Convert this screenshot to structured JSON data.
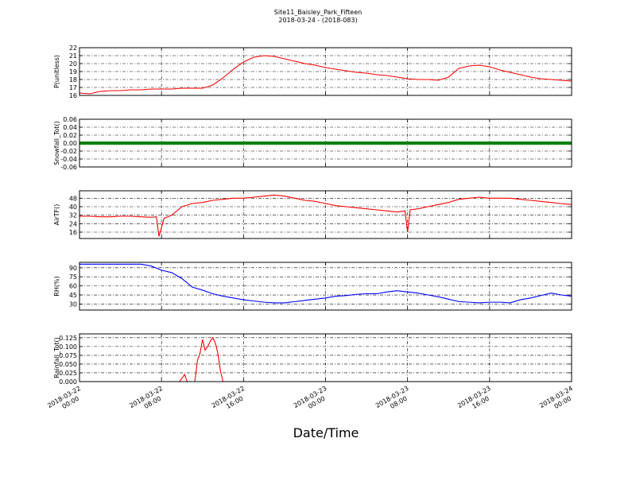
{
  "chart_data": [
    {
      "type": "line",
      "title": "Site11_Baisley_Park_Fifteen",
      "subtitle": "2018-03-24 - (2018-083)",
      "ylabel": "P(unitless)",
      "color": "#ff0000",
      "ylim": [
        16,
        22
      ],
      "yticks": [
        16,
        17,
        18,
        19,
        20,
        21,
        22
      ],
      "grid": true,
      "x": [
        "2018-03-22 00:00",
        "2018-03-22 01:00",
        "2018-03-22 02:00",
        "2018-03-22 03:00",
        "2018-03-22 04:00",
        "2018-03-22 05:00",
        "2018-03-22 06:00",
        "2018-03-22 07:00",
        "2018-03-22 08:00",
        "2018-03-22 09:00",
        "2018-03-22 10:00",
        "2018-03-22 11:00",
        "2018-03-22 12:00",
        "2018-03-22 13:00",
        "2018-03-22 14:00",
        "2018-03-22 15:00",
        "2018-03-22 16:00",
        "2018-03-22 17:00",
        "2018-03-22 18:00",
        "2018-03-22 19:00",
        "2018-03-22 20:00",
        "2018-03-22 21:00",
        "2018-03-22 22:00",
        "2018-03-22 23:00",
        "2018-03-23 00:00",
        "2018-03-23 01:00",
        "2018-03-23 02:00",
        "2018-03-23 03:00",
        "2018-03-23 04:00",
        "2018-03-23 05:00",
        "2018-03-23 06:00",
        "2018-03-23 07:00",
        "2018-03-23 08:00",
        "2018-03-23 09:00",
        "2018-03-23 10:00",
        "2018-03-23 11:00",
        "2018-03-23 12:00",
        "2018-03-23 13:00",
        "2018-03-23 14:00",
        "2018-03-23 15:00",
        "2018-03-23 16:00",
        "2018-03-23 17:00",
        "2018-03-23 18:00",
        "2018-03-23 19:00",
        "2018-03-23 20:00",
        "2018-03-23 21:00",
        "2018-03-23 22:00",
        "2018-03-23 23:00",
        "2018-03-24 00:00"
      ],
      "values": [
        16.3,
        16.2,
        16.5,
        16.6,
        16.6,
        16.7,
        16.7,
        16.8,
        16.8,
        16.8,
        16.9,
        16.9,
        16.9,
        17.3,
        18.2,
        19.3,
        20.2,
        20.8,
        21.0,
        20.9,
        20.6,
        20.3,
        20.0,
        19.8,
        19.5,
        19.3,
        19.1,
        18.9,
        18.8,
        18.6,
        18.5,
        18.3,
        18.1,
        18.0,
        18.0,
        17.9,
        18.3,
        19.4,
        19.7,
        19.8,
        19.6,
        19.2,
        18.9,
        18.6,
        18.3,
        18.1,
        18.0,
        17.9,
        17.8
      ]
    },
    {
      "type": "line",
      "ylabel": "Snowfall_Tot()",
      "color": "#008000",
      "ylim": [
        -0.06,
        0.06
      ],
      "yticks": [
        -0.06,
        -0.04,
        -0.02,
        {
          "value": 0,
          "label": "0.00"
        },
        0.02,
        0.04,
        0.06
      ],
      "grid": true,
      "x": [
        "2018-03-22 00:00",
        "2018-03-22 01:00",
        "2018-03-22 02:00",
        "2018-03-22 03:00",
        "2018-03-22 04:00",
        "2018-03-22 05:00",
        "2018-03-22 06:00",
        "2018-03-22 07:00",
        "2018-03-22 08:00",
        "2018-03-22 09:00",
        "2018-03-22 10:00",
        "2018-03-22 11:00",
        "2018-03-22 12:00",
        "2018-03-22 13:00",
        "2018-03-22 14:00",
        "2018-03-22 15:00",
        "2018-03-22 16:00",
        "2018-03-22 17:00",
        "2018-03-22 18:00",
        "2018-03-22 19:00",
        "2018-03-22 20:00",
        "2018-03-22 21:00",
        "2018-03-22 22:00",
        "2018-03-22 23:00",
        "2018-03-23 00:00",
        "2018-03-23 01:00",
        "2018-03-23 02:00",
        "2018-03-23 03:00",
        "2018-03-23 04:00",
        "2018-03-23 05:00",
        "2018-03-23 06:00",
        "2018-03-23 07:00",
        "2018-03-23 08:00",
        "2018-03-23 09:00",
        "2018-03-23 10:00",
        "2018-03-23 11:00",
        "2018-03-23 12:00",
        "2018-03-23 13:00",
        "2018-03-23 14:00",
        "2018-03-23 15:00",
        "2018-03-23 16:00",
        "2018-03-23 17:00",
        "2018-03-23 18:00",
        "2018-03-23 19:00",
        "2018-03-23 20:00",
        "2018-03-23 21:00",
        "2018-03-23 22:00",
        "2018-03-23 23:00",
        "2018-03-24 00:00"
      ],
      "values": [
        0,
        0,
        0,
        0,
        0,
        0,
        0,
        0,
        0,
        0,
        0,
        0,
        0,
        0,
        0,
        0,
        0,
        0,
        0,
        0,
        0,
        0,
        0,
        0,
        0,
        0,
        0,
        0,
        0,
        0,
        0,
        0,
        0,
        0,
        0,
        0,
        0,
        0,
        0,
        0,
        0,
        0,
        0,
        0,
        0,
        0,
        0,
        0,
        0
      ]
    },
    {
      "type": "line",
      "ylabel": "AirTF()",
      "color": "#ff0000",
      "ylim": [
        10,
        55
      ],
      "yticks": [
        16,
        24,
        32,
        40,
        48
      ],
      "grid": true,
      "x": [
        "2018-03-22 00:00",
        "2018-03-22 01:00",
        "2018-03-22 02:00",
        "2018-03-22 03:00",
        "2018-03-22 04:00",
        "2018-03-22 05:00",
        "2018-03-22 06:00",
        "2018-03-22 07:00",
        "2018-03-22 07:30",
        "2018-03-22 07:45",
        "2018-03-22 08:15",
        "2018-03-22 09:00",
        "2018-03-22 10:00",
        "2018-03-22 11:00",
        "2018-03-22 12:00",
        "2018-03-22 13:00",
        "2018-03-22 14:00",
        "2018-03-22 15:00",
        "2018-03-22 16:00",
        "2018-03-22 17:00",
        "2018-03-22 18:00",
        "2018-03-22 19:00",
        "2018-03-22 20:00",
        "2018-03-22 21:00",
        "2018-03-22 22:00",
        "2018-03-22 23:00",
        "2018-03-23 00:00",
        "2018-03-23 01:00",
        "2018-03-23 02:00",
        "2018-03-23 03:00",
        "2018-03-23 04:00",
        "2018-03-23 05:00",
        "2018-03-23 06:00",
        "2018-03-23 07:00",
        "2018-03-23 07:45",
        "2018-03-23 08:00",
        "2018-03-23 08:15",
        "2018-03-23 09:00",
        "2018-03-23 10:00",
        "2018-03-23 11:00",
        "2018-03-23 12:00",
        "2018-03-23 13:00",
        "2018-03-23 14:00",
        "2018-03-23 15:00",
        "2018-03-23 16:00",
        "2018-03-23 17:00",
        "2018-03-23 18:00",
        "2018-03-23 19:00",
        "2018-03-23 20:00",
        "2018-03-23 21:00",
        "2018-03-23 22:00",
        "2018-03-23 23:00",
        "2018-03-24 00:00"
      ],
      "values": [
        31,
        31,
        30.5,
        30.5,
        31,
        31,
        30.5,
        30,
        30.5,
        12,
        29,
        32,
        40,
        43,
        44,
        46,
        47,
        48,
        48,
        49,
        50,
        51,
        50,
        48,
        46,
        45,
        43,
        41,
        40,
        39,
        38,
        37,
        36,
        35,
        36,
        16,
        37,
        38,
        40,
        42,
        44,
        47,
        48,
        49,
        48,
        48,
        48,
        47,
        46,
        45,
        44,
        43,
        42
      ]
    },
    {
      "type": "line",
      "ylabel": "RH(%)",
      "color": "#0000ff",
      "ylim": [
        20,
        99
      ],
      "yticks": [
        30,
        45,
        60,
        75,
        90
      ],
      "grid": true,
      "x": [
        "2018-03-22 00:00",
        "2018-03-22 01:00",
        "2018-03-22 02:00",
        "2018-03-22 03:00",
        "2018-03-22 04:00",
        "2018-03-22 05:00",
        "2018-03-22 06:00",
        "2018-03-22 07:00",
        "2018-03-22 08:00",
        "2018-03-22 09:00",
        "2018-03-22 10:00",
        "2018-03-22 11:00",
        "2018-03-22 12:00",
        "2018-03-22 13:00",
        "2018-03-22 14:00",
        "2018-03-22 15:00",
        "2018-03-22 16:00",
        "2018-03-22 17:00",
        "2018-03-22 18:00",
        "2018-03-22 19:00",
        "2018-03-22 20:00",
        "2018-03-22 21:00",
        "2018-03-22 22:00",
        "2018-03-22 23:00",
        "2018-03-23 00:00",
        "2018-03-23 01:00",
        "2018-03-23 02:00",
        "2018-03-23 03:00",
        "2018-03-23 04:00",
        "2018-03-23 05:00",
        "2018-03-23 06:00",
        "2018-03-23 07:00",
        "2018-03-23 08:00",
        "2018-03-23 09:00",
        "2018-03-23 10:00",
        "2018-03-23 11:00",
        "2018-03-23 12:00",
        "2018-03-23 13:00",
        "2018-03-23 14:00",
        "2018-03-23 15:00",
        "2018-03-23 16:00",
        "2018-03-23 17:00",
        "2018-03-23 18:00",
        "2018-03-23 19:00",
        "2018-03-23 20:00",
        "2018-03-23 21:00",
        "2018-03-23 22:00",
        "2018-03-23 23:00",
        "2018-03-24 00:00"
      ],
      "values": [
        96,
        96,
        96,
        96,
        96,
        96,
        96,
        93,
        86,
        82,
        72,
        58,
        53,
        47,
        43,
        40,
        37,
        35,
        33,
        32,
        32,
        34,
        36,
        38,
        40,
        43,
        44,
        46,
        47,
        47,
        50,
        52,
        50,
        48,
        45,
        42,
        38,
        34,
        33,
        32,
        33,
        33,
        32,
        37,
        40,
        44,
        48,
        45,
        43
      ]
    },
    {
      "type": "line",
      "ylabel": "Rainfall_Tot()",
      "xlabel": "Date/Time",
      "color": "#ff0000",
      "ylim": [
        0,
        0.136
      ],
      "yticks": [
        {
          "value": 0,
          "label": "0.000"
        },
        0.025,
        {
          "value": 0.05,
          "label": "0.050"
        },
        0.075,
        {
          "value": 0.1,
          "label": "0.100"
        },
        0.125
      ],
      "grid": true,
      "xlim": [
        "2018-03-22 00:00",
        "2018-03-24 00:00"
      ],
      "xticks": [
        {
          "value": "2018-03-22 00:00",
          "label": [
            "2018-03-22",
            "00:00"
          ]
        },
        {
          "value": "2018-03-22 08:00",
          "label": [
            "2018-03-22",
            "08:00"
          ]
        },
        {
          "value": "2018-03-22 16:00",
          "label": [
            "2018-03-22",
            "16:00"
          ]
        },
        {
          "value": "2018-03-23 00:00",
          "label": [
            "2018-03-23",
            "00:00"
          ]
        },
        {
          "value": "2018-03-23 08:00",
          "label": [
            "2018-03-23",
            "08:00"
          ]
        },
        {
          "value": "2018-03-23 16:00",
          "label": [
            "2018-03-23",
            "16:00"
          ]
        },
        {
          "value": "2018-03-24 00:00",
          "label": [
            "2018-03-24",
            "00:00"
          ]
        }
      ],
      "x": [
        "2018-03-22 00:00",
        "2018-03-22 09:45",
        "2018-03-22 10:00",
        "2018-03-22 10:15",
        "2018-03-22 10:30",
        "2018-03-22 11:15",
        "2018-03-22 11:30",
        "2018-03-22 11:45",
        "2018-03-22 12:00",
        "2018-03-22 12:15",
        "2018-03-22 12:30",
        "2018-03-22 12:45",
        "2018-03-22 13:00",
        "2018-03-22 13:15",
        "2018-03-22 13:30",
        "2018-03-22 13:45",
        "2018-03-22 14:00",
        "2018-03-24 00:00"
      ],
      "values": [
        0,
        0,
        0.01,
        0.02,
        0,
        0,
        0.06,
        0.08,
        0.12,
        0.09,
        0.1,
        0.115,
        0.125,
        0.11,
        0.08,
        0.03,
        0,
        0
      ]
    }
  ]
}
